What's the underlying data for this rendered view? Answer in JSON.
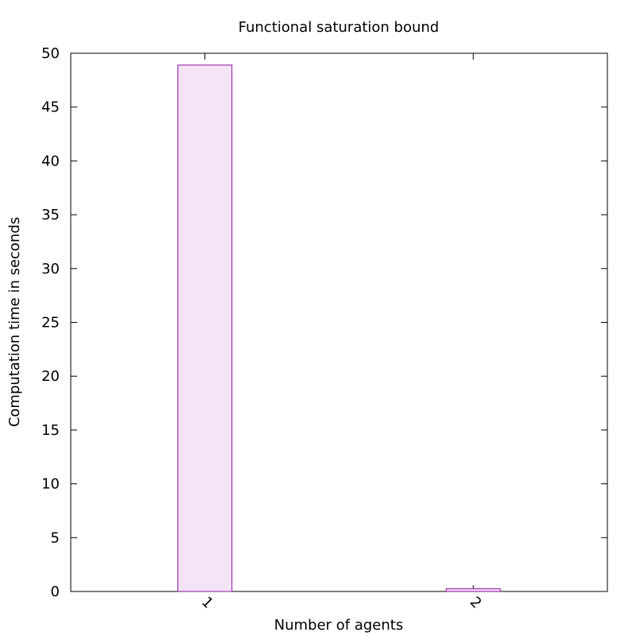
{
  "chart_data": {
    "type": "bar",
    "title": "Functional saturation bound",
    "xlabel": "Number of agents",
    "ylabel": "Computation time in seconds",
    "categories": [
      "1",
      "2"
    ],
    "values": [
      48.9,
      0.25
    ],
    "ylim": [
      0,
      50
    ],
    "yticks": [
      0,
      5,
      10,
      15,
      20,
      25,
      30,
      35,
      40,
      45,
      50
    ],
    "grid": false,
    "legend": "none",
    "colors": {
      "bar_fill": "#f5e3f8",
      "bar_stroke": "#8b0fa0",
      "axis": "#000000"
    }
  }
}
